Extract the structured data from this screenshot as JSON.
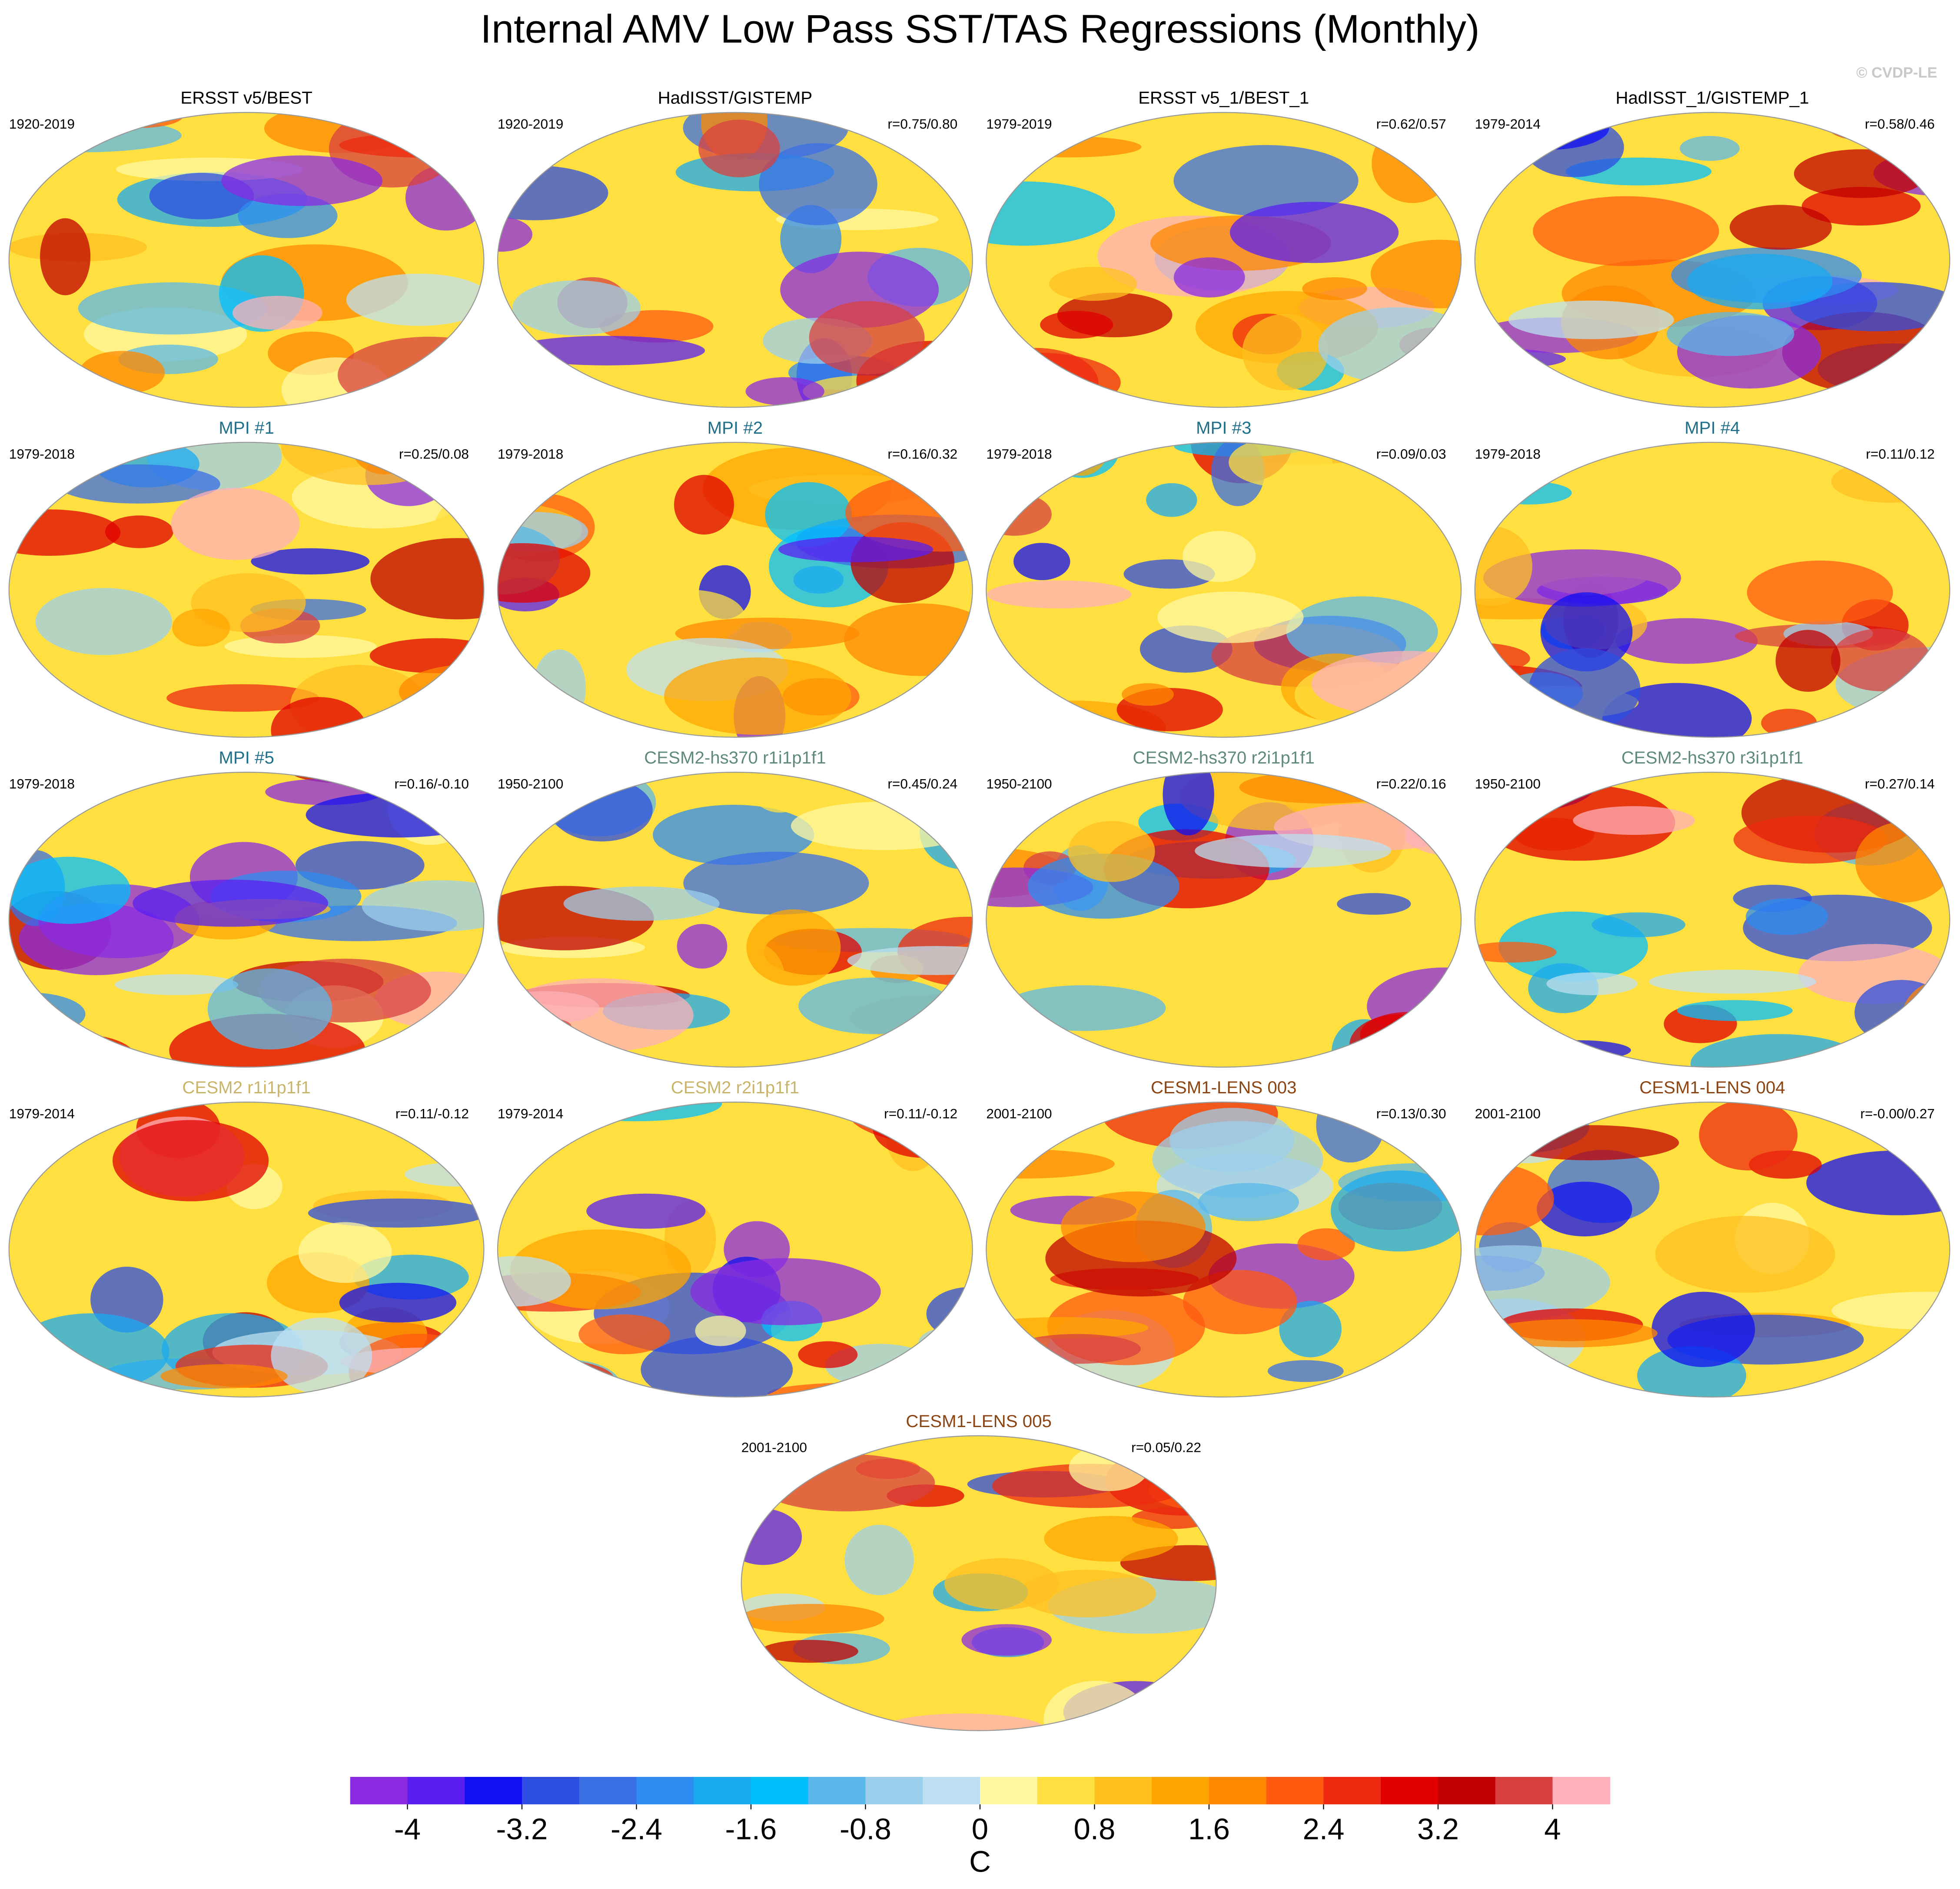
{
  "title": "Internal AMV Low Pass SST/TAS Regressions (Monthly)",
  "watermark": "© CVDP-LE",
  "panels": [
    {
      "title": "ERSST v5/BEST",
      "title_color": "#000000",
      "period": "1920-2019"
    },
    {
      "title": "HadISST/GISTEMP",
      "title_color": "#000000",
      "period": "1920-2019",
      "r": "r=0.75/0.80"
    },
    {
      "title": "ERSST v5_1/BEST_1",
      "title_color": "#000000",
      "period": "1979-2019",
      "r": "r=0.62/0.57"
    },
    {
      "title": "HadISST_1/GISTEMP_1",
      "title_color": "#000000",
      "period": "1979-2014",
      "r": "r=0.58/0.46"
    },
    {
      "title": "MPI #1",
      "title_color": "#1f6f8b",
      "period": "1979-2018",
      "r": "r=0.25/0.08"
    },
    {
      "title": "MPI #2",
      "title_color": "#1f6f8b",
      "period": "1979-2018",
      "r": "r=0.16/0.32"
    },
    {
      "title": "MPI #3",
      "title_color": "#1f6f8b",
      "period": "1979-2018",
      "r": "r=0.09/0.03"
    },
    {
      "title": "MPI #4",
      "title_color": "#1f6f8b",
      "period": "1979-2018",
      "r": "r=0.11/0.12"
    },
    {
      "title": "MPI #5",
      "title_color": "#1f6f8b",
      "period": "1979-2018",
      "r": "r=0.16/-0.10"
    },
    {
      "title": "CESM2-hs370 r1i1p1f1",
      "title_color": "#5f8a7a",
      "period": "1950-2100",
      "r": "r=0.45/0.24"
    },
    {
      "title": "CESM2-hs370 r2i1p1f1",
      "title_color": "#5f8a7a",
      "period": "1950-2100",
      "r": "r=0.22/0.16"
    },
    {
      "title": "CESM2-hs370 r3i1p1f1",
      "title_color": "#5f8a7a",
      "period": "1950-2100",
      "r": "r=0.27/0.14"
    },
    {
      "title": "CESM2 r1i1p1f1",
      "title_color": "#c8b46a",
      "period": "1979-2014",
      "r": "r=0.11/-0.12"
    },
    {
      "title": "CESM2 r2i1p1f1",
      "title_color": "#c8b46a",
      "period": "1979-2014",
      "r": "r=0.11/-0.12"
    },
    {
      "title": "CESM1-LENS 003",
      "title_color": "#8b4513",
      "period": "2001-2100",
      "r": "r=0.13/0.30"
    },
    {
      "title": "CESM1-LENS 004",
      "title_color": "#8b4513",
      "period": "2001-2100",
      "r": "r=-0.00/0.27"
    },
    {
      "title": "CESM1-LENS 005",
      "title_color": "#8b4513",
      "period": "2001-2100",
      "r": "r=0.05/0.22"
    }
  ],
  "colorbar": {
    "lim": [
      -4.4,
      4.4
    ],
    "ticks": [
      -4,
      -3.2,
      -2.4,
      -1.6,
      -0.8,
      0,
      0.8,
      1.6,
      2.4,
      3.2,
      4
    ],
    "unit": "C",
    "colors": [
      "#8a2be2",
      "#5a1ff0",
      "#1010f0",
      "#2d4ee0",
      "#3a6fe6",
      "#2f8cf0",
      "#1aaaf0",
      "#00bfff",
      "#5ab8ea",
      "#9ccfec",
      "#bce0f2",
      "#fff8a0",
      "#ffe040",
      "#ffc020",
      "#ffa500",
      "#ff8800",
      "#ff5a10",
      "#ee2a10",
      "#e00000",
      "#c00000",
      "#d84040",
      "#ffb0b8"
    ]
  }
}
